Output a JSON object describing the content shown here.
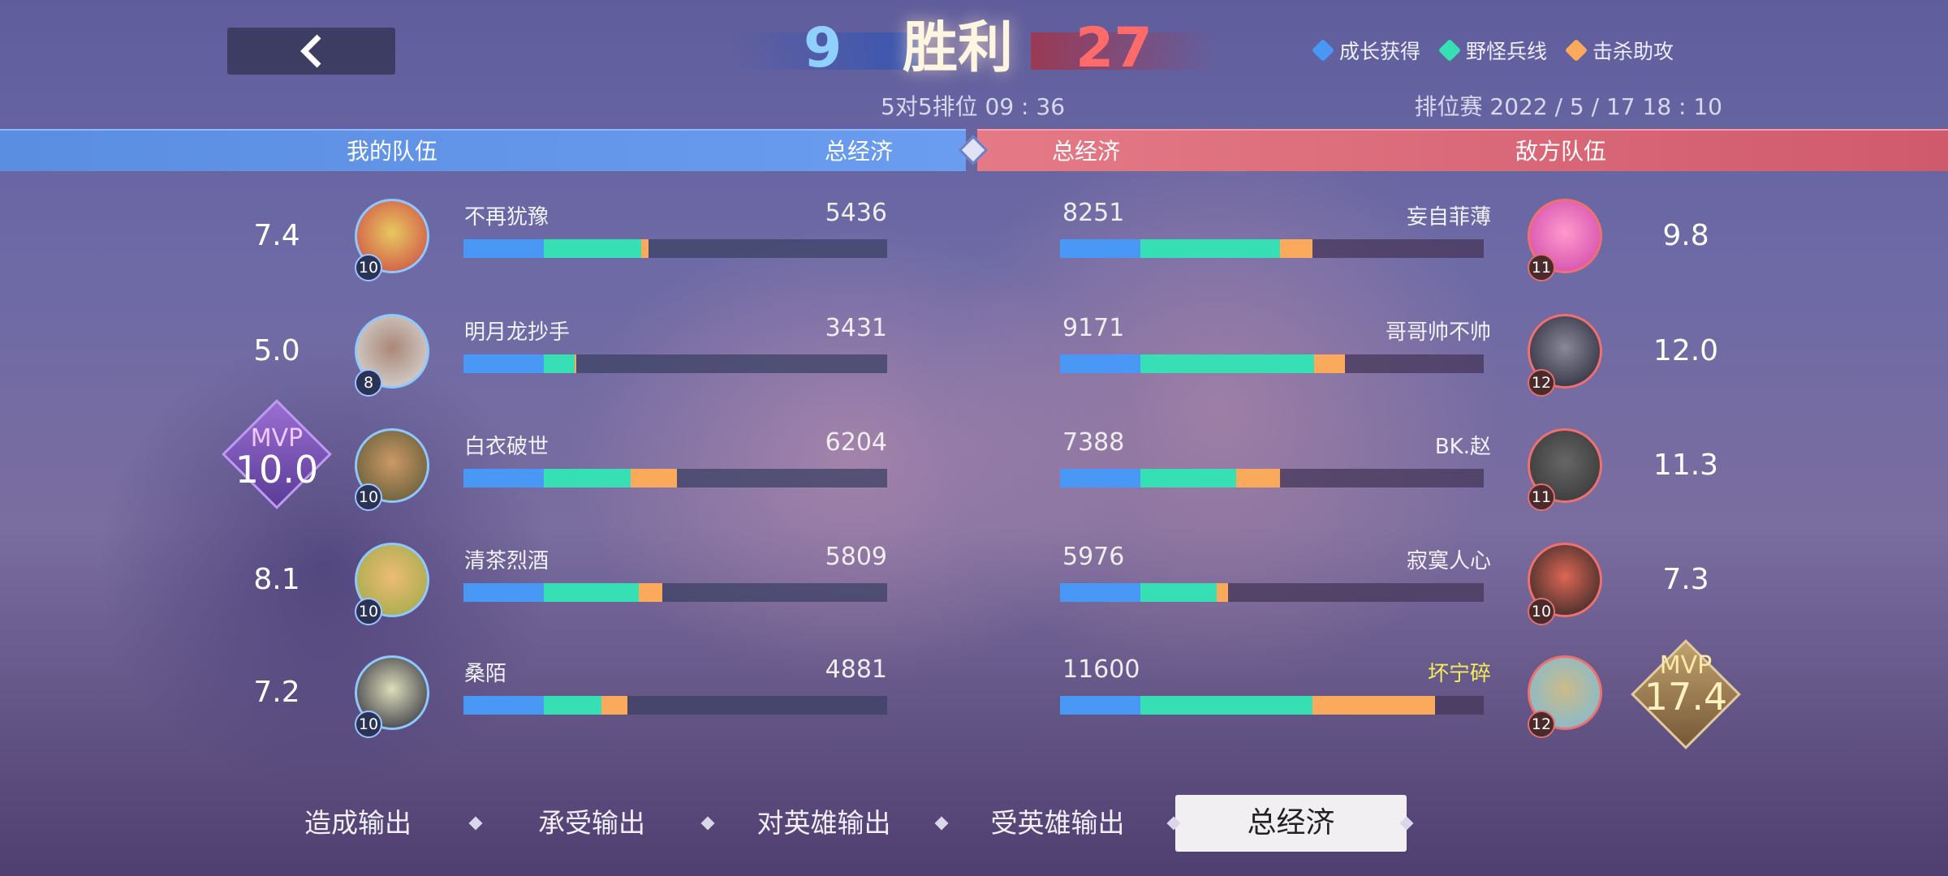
{
  "header": {
    "back_icon": "chevron-left-icon",
    "my_kills": "9",
    "result": "胜利",
    "enemy_kills": "27",
    "mode_time": "5对5排位 09 : 36",
    "match_info": "排位赛 2022 / 5 / 17  18 : 10"
  },
  "legend": [
    {
      "label": "成长获得",
      "color": "#4a98f5"
    },
    {
      "label": "野怪兵线",
      "color": "#37e0b4"
    },
    {
      "label": "击杀助攻",
      "color": "#fbaa5c"
    }
  ],
  "teams": {
    "my_label": "我的队伍",
    "my_stat": "总经济",
    "enemy_stat": "总经济",
    "enemy_label": "敌方队伍"
  },
  "my_team": [
    {
      "score": "7.4",
      "level": "10",
      "name": "不再犹豫",
      "gold": "5436",
      "bar": [
        0.19,
        0.23,
        0.016
      ],
      "mvp": false
    },
    {
      "score": "5.0",
      "level": "8",
      "name": "明月龙抄手",
      "gold": "3431",
      "bar": [
        0.19,
        0.072,
        0.004
      ],
      "mvp": false
    },
    {
      "score": "10.0",
      "level": "10",
      "name": "白衣破世",
      "gold": "6204",
      "bar": [
        0.19,
        0.204,
        0.11
      ],
      "mvp": true
    },
    {
      "score": "8.1",
      "level": "10",
      "name": "清茶烈酒",
      "gold": "5809",
      "bar": [
        0.19,
        0.223,
        0.056
      ],
      "mvp": false
    },
    {
      "score": "7.2",
      "level": "10",
      "name": "桑陌",
      "gold": "4881",
      "bar": [
        0.19,
        0.135,
        0.062
      ],
      "mvp": false
    }
  ],
  "enemy_team": [
    {
      "score": "9.8",
      "level": "11",
      "name": "妄自菲薄",
      "gold": "8251",
      "bar": [
        0.19,
        0.33,
        0.076
      ],
      "mvp": false
    },
    {
      "score": "12.0",
      "level": "12",
      "name": "哥哥帅不帅",
      "gold": "9171",
      "bar": [
        0.19,
        0.41,
        0.073
      ],
      "mvp": false
    },
    {
      "score": "11.3",
      "level": "11",
      "name": "BK.赵",
      "gold": "7388",
      "bar": [
        0.19,
        0.225,
        0.105
      ],
      "mvp": false
    },
    {
      "score": "7.3",
      "level": "10",
      "name": "寂寞人心",
      "gold": "5976",
      "bar": [
        0.19,
        0.18,
        0.026
      ],
      "mvp": false
    },
    {
      "score": "17.4",
      "level": "12",
      "name": "坏宁碎",
      "gold": "11600",
      "bar": [
        0.19,
        0.406,
        0.29
      ],
      "mvp": true,
      "highlight": "#f5ee5a"
    }
  ],
  "mvp_label": "MVP",
  "tabs": [
    {
      "label": "造成输出"
    },
    {
      "label": "承受输出"
    },
    {
      "label": "对英雄输出"
    },
    {
      "label": "受英雄输出"
    },
    {
      "label": "总经济",
      "active": true
    }
  ]
}
